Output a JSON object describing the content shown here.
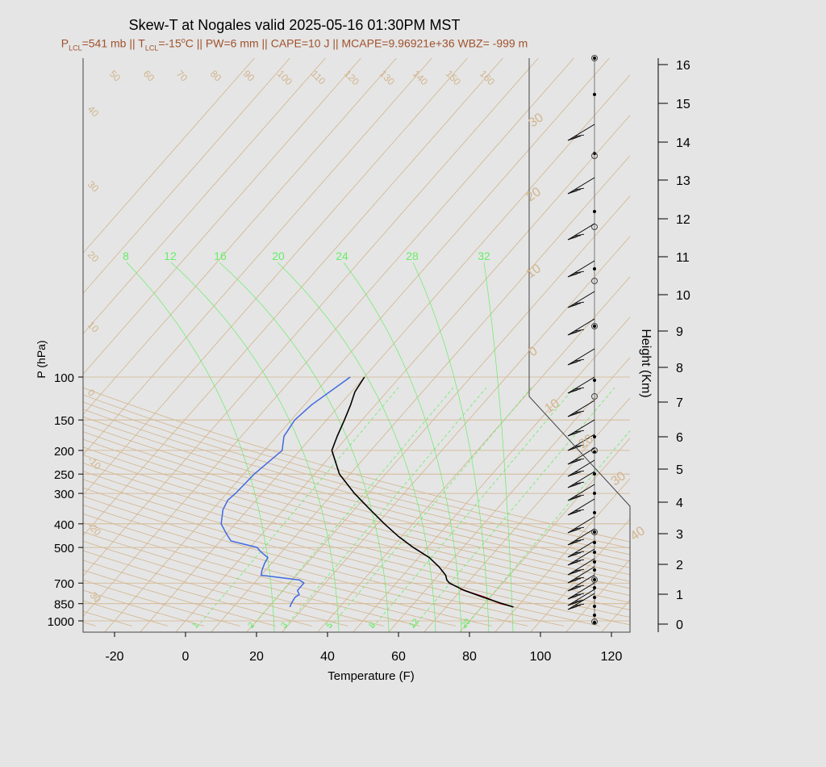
{
  "title": "Skew-T at Nogales valid 2025-05-16 01:30PM MST",
  "subtitle": {
    "plcl_label": "P",
    "plcl_sub": "LCL",
    "plcl_val": "=541 mb || ",
    "tlcl_label": "T",
    "tlcl_sub": "LCL",
    "tlcl_val": "=-15",
    "tlcl_deg": "o",
    "tlcl_rest": "C || PW=6 mm || CAPE=10 J || MCAPE=9.96921e+36 WBZ= -999 m"
  },
  "colors": {
    "background": "#e5e5e5",
    "isotherm": "#d2b48c",
    "mixing_ratio": "#66ee66",
    "temperature": "#000000",
    "dewpoint": "#4169e1",
    "parcel": "#cc0000",
    "frame": "#444444"
  },
  "chart_data": {
    "type": "skew-t",
    "xlabel": "Temperature (F)",
    "ylabel": "P (hPa)",
    "y2label": "Height (Km)",
    "xlim": [
      -28,
      125
    ],
    "ylim": [
      1050,
      100
    ],
    "x_ticks": [
      -20,
      0,
      20,
      40,
      60,
      80,
      100,
      120
    ],
    "pressure_ticks": [
      100,
      150,
      200,
      250,
      300,
      400,
      500,
      700,
      850,
      1000
    ],
    "height_ticks": [
      0,
      1,
      2,
      3,
      4,
      5,
      6,
      7,
      8,
      9,
      10,
      11,
      12,
      13,
      14,
      15,
      16
    ],
    "isotherm_labels_top": [
      50,
      60,
      70,
      80,
      90,
      100,
      110,
      120,
      130,
      140,
      150,
      160
    ],
    "isotherm_labels_left": [
      40,
      30,
      20,
      10,
      0,
      -10,
      -20,
      -30
    ],
    "isotherm_labels_right": [
      30,
      20,
      10,
      0,
      10,
      20,
      30,
      40
    ],
    "mixing_ratio_top_labels": [
      8,
      12,
      16,
      20,
      24,
      28,
      32
    ],
    "mixing_ratio_bottom_labels": [
      "1",
      "2",
      "3",
      "5",
      "8",
      "12",
      "20"
    ],
    "temperature": {
      "pressure": [
        878,
        850,
        800,
        750,
        700,
        680,
        650,
        600,
        550,
        500,
        450,
        400,
        350,
        300,
        250,
        200,
        175,
        150,
        130,
        115,
        100
      ],
      "temp_f": [
        89,
        85,
        78,
        71,
        65,
        63.5,
        62,
        58,
        53,
        46,
        39,
        32,
        24.5,
        16,
        7,
        -1,
        -3,
        -5,
        -7,
        -9,
        -10
      ]
    },
    "dewpoint": {
      "pressure": [
        878,
        850,
        800,
        780,
        750,
        700,
        680,
        650,
        620,
        580,
        550,
        520,
        500,
        470,
        440,
        400,
        350,
        320,
        300,
        250,
        200,
        175,
        150,
        130,
        100
      ],
      "dewp_f": [
        26,
        25.5,
        25,
        25.5,
        24,
        24,
        22,
        10,
        9,
        8,
        7.5,
        4,
        2,
        -7,
        -10,
        -14,
        -17,
        -18,
        -17.5,
        -17,
        -15,
        -18,
        -19,
        -18,
        -14
      ]
    },
    "parcel": {
      "pressure": [
        870,
        850,
        800,
        760,
        740
      ],
      "temp_f": [
        88,
        84.5,
        78.5,
        72.5,
        69.5
      ]
    }
  },
  "wind_profile": {
    "barbs_y": [
      174,
      240,
      297,
      343,
      381,
      415,
      452,
      487,
      516,
      540,
      558,
      575,
      590,
      604,
      620,
      638,
      660,
      675,
      690,
      700,
      712,
      722,
      732,
      742,
      750,
      755
    ],
    "dots_y": [
      72,
      117,
      190,
      262,
      333,
      404,
      471,
      541,
      560,
      587,
      611,
      635,
      659,
      672,
      684,
      696,
      706,
      718,
      728,
      740,
      751,
      762,
      771
    ],
    "circles_y": [
      72,
      193,
      281,
      348,
      404,
      491,
      558,
      659,
      718,
      770
    ]
  }
}
